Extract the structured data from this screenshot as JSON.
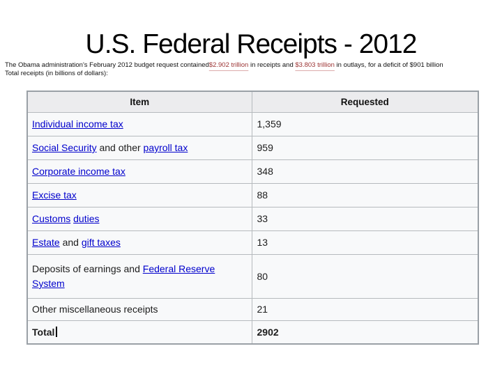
{
  "slide": {
    "title": "U.S. Federal Receipts - 2012",
    "subtitle": {
      "part1": "The Obama administration's February 2012 budget request contained",
      "red1": "$2.902 trillion",
      "part2": " in receipts and ",
      "red2": "$3.803 trillion",
      "part3": " in outlays, for a deficit of $901 billion",
      "line2": "Total receipts (in billions of dollars):"
    }
  },
  "table": {
    "headers": [
      "Item",
      "Requested"
    ],
    "rows": [
      {
        "segments": [
          {
            "text": "Individual income tax",
            "link": true
          }
        ],
        "value": "1,359"
      },
      {
        "segments": [
          {
            "text": "Social Security",
            "link": true
          },
          {
            "text": " and other ",
            "link": false
          },
          {
            "text": "payroll tax",
            "link": true
          }
        ],
        "value": "959"
      },
      {
        "segments": [
          {
            "text": "Corporate income tax",
            "link": true
          }
        ],
        "value": "348"
      },
      {
        "segments": [
          {
            "text": "Excise tax",
            "link": true
          }
        ],
        "value": "88"
      },
      {
        "segments": [
          {
            "text": "Customs",
            "link": true
          },
          {
            "text": " ",
            "link": false
          },
          {
            "text": "duties",
            "link": true
          }
        ],
        "value": "33"
      },
      {
        "segments": [
          {
            "text": "Estate",
            "link": true
          },
          {
            "text": " and ",
            "link": false
          },
          {
            "text": "gift taxes",
            "link": true
          }
        ],
        "value": "13"
      },
      {
        "segments": [
          {
            "text": "Deposits of earnings and ",
            "link": false
          },
          {
            "text": "Federal Reserve System",
            "link": true
          }
        ],
        "value": "80"
      },
      {
        "segments": [
          {
            "text": "Other miscellaneous receipts",
            "link": false
          }
        ],
        "value": "21"
      },
      {
        "segments": [
          {
            "text": "Total",
            "link": false,
            "bold": true
          }
        ],
        "value": "2902",
        "bold": true
      }
    ]
  },
  "colors": {
    "link_blue": "#0000cc",
    "amount_red": "#9c3434",
    "header_bg": "#ececee",
    "table_bg": "#f8f9fa",
    "table_border": "#9aa0a6"
  }
}
